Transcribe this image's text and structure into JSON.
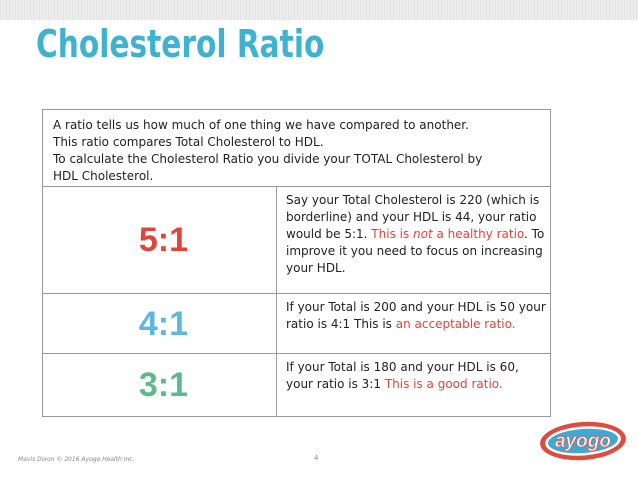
{
  "slide": {
    "title": "Cholesterol Ratio",
    "intro": [
      "A ratio tells us how much of one thing we have compared to another.",
      "This ratio compares Total Cholesterol to HDL.",
      "To calculate the Cholesterol Ratio you divide your TOTAL Cholesterol by",
      "HDL Cholesterol."
    ],
    "rows": [
      {
        "ratio": "5:1",
        "ratio_color": "#e0443a",
        "text_plain_1": "Say your Total Cholesterol is 220 (which is borderline) and your HDL is 44, your ratio would be 5:1. ",
        "text_red_1": "This is ",
        "text_red_em": "not",
        "text_red_2": " a healthy ratio",
        "text_plain_2": ". To improve it you need to focus on increasing your HDL."
      },
      {
        "ratio": "4:1",
        "ratio_color": "#5cb9db",
        "text_plain_1": "If your Total is 200 and your HDL is 50 your ratio is 4:1 This is ",
        "text_red_1": "an acceptable ratio."
      },
      {
        "ratio": "3:1",
        "ratio_color": "#5cba8e",
        "text_plain_1": "If your Total is 180 and your HDL is 60, your ratio is 3:1 ",
        "text_red_1": "This is a good ratio."
      }
    ],
    "footer": "Mavis Dixon © 2016 Ayogo Health Inc.",
    "page_number": "4",
    "logo_text": "ayogo",
    "colors": {
      "title": "#3fb2cf",
      "highlight": "#e0443a",
      "logo_red": "#e14a3e",
      "logo_blue": "#3fa9d6"
    }
  }
}
